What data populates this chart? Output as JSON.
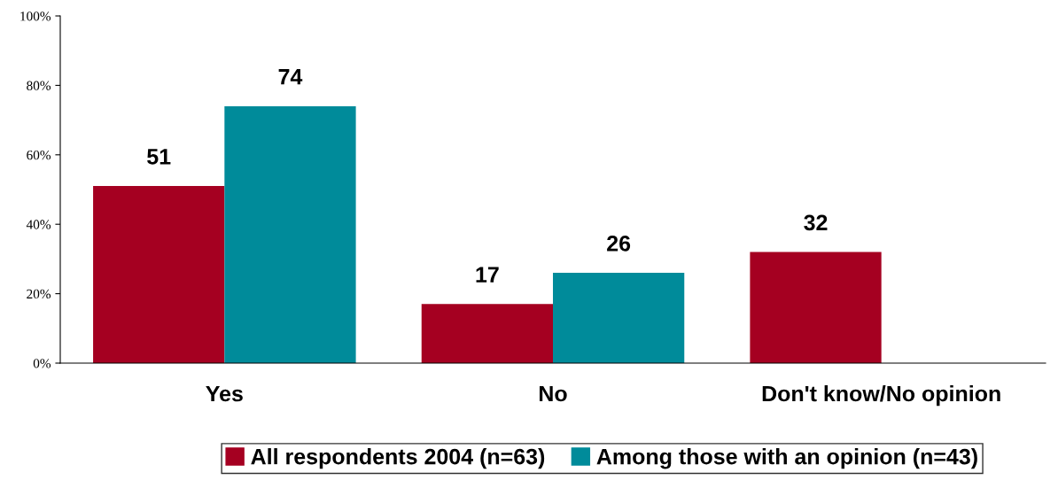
{
  "chart_data": {
    "type": "bar",
    "categories": [
      "Yes",
      "No",
      "Don't know/No opinion"
    ],
    "series": [
      {
        "name": "All respondents 2004 (n=63)",
        "color": "#a50021",
        "values": [
          51,
          17,
          32
        ]
      },
      {
        "name": "Among those with an opinion (n=43)",
        "color": "#008b9a",
        "values": [
          74,
          26,
          null
        ]
      }
    ],
    "ylim": [
      0,
      100
    ],
    "yticks": [
      {
        "value": 0,
        "label": "0%"
      },
      {
        "value": 20,
        "label": "20%"
      },
      {
        "value": 40,
        "label": "40%"
      },
      {
        "value": 60,
        "label": "60%"
      },
      {
        "value": 80,
        "label": "80%"
      },
      {
        "value": 100,
        "label": "100%"
      }
    ],
    "data_labels": true,
    "grid": false,
    "legend": "bottom"
  }
}
